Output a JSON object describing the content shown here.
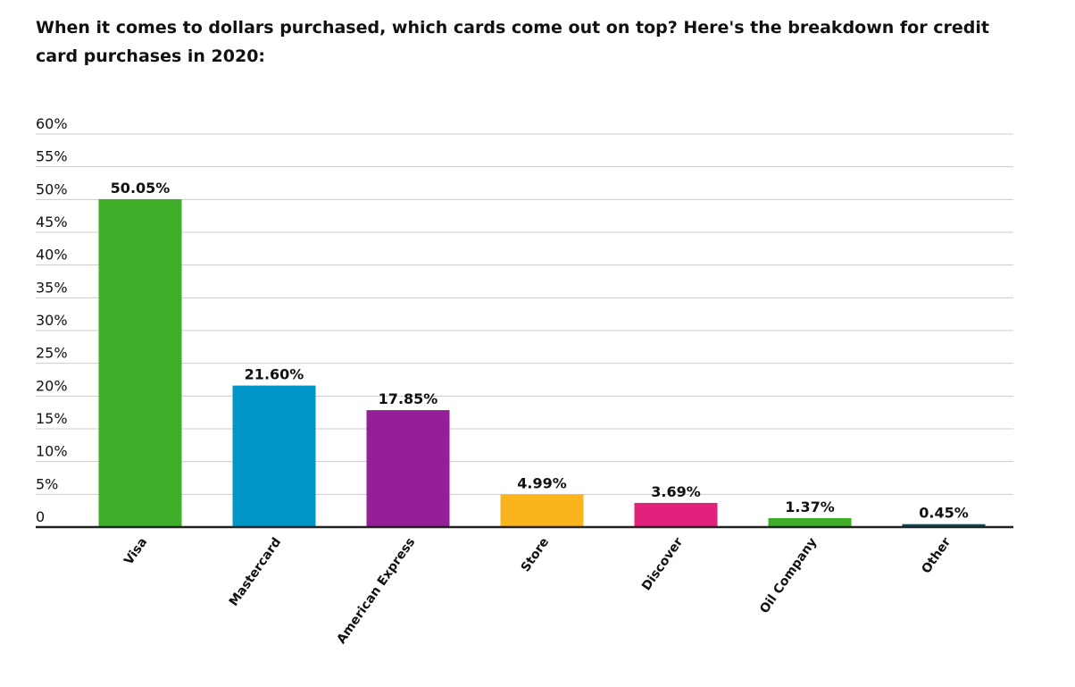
{
  "title": "When it comes to dollars purchased, which cards come out on top? Here's the breakdown for credit card purchases in 2020:",
  "chart_data": {
    "type": "bar",
    "title": "When it comes to dollars purchased, which cards come out on top? Here's the breakdown for credit card purchases in 2020:",
    "categories": [
      "Visa",
      "Mastercard",
      "American Express",
      "Store",
      "Discover",
      "Oil Company",
      "Other"
    ],
    "values": [
      50.05,
      21.6,
      17.85,
      4.99,
      3.69,
      1.37,
      0.45
    ],
    "data_labels": [
      "50.05%",
      "21.60%",
      "17.85%",
      "4.99%",
      "3.69%",
      "1.37%",
      "0.45%"
    ],
    "colors": [
      "#3fae29",
      "#0096c8",
      "#941f96",
      "#fbb41c",
      "#e3217a",
      "#3fae29",
      "#0d4d5c"
    ],
    "ylim": [
      0,
      60
    ],
    "yticks": [
      0,
      5,
      10,
      15,
      20,
      25,
      30,
      35,
      40,
      45,
      50,
      55,
      60
    ],
    "ytick_labels": [
      "0",
      "5%",
      "10%",
      "15%",
      "20%",
      "25%",
      "30%",
      "35%",
      "40%",
      "45%",
      "50%",
      "55%",
      "60%"
    ],
    "grid": true,
    "xlabel": "",
    "ylabel": ""
  }
}
